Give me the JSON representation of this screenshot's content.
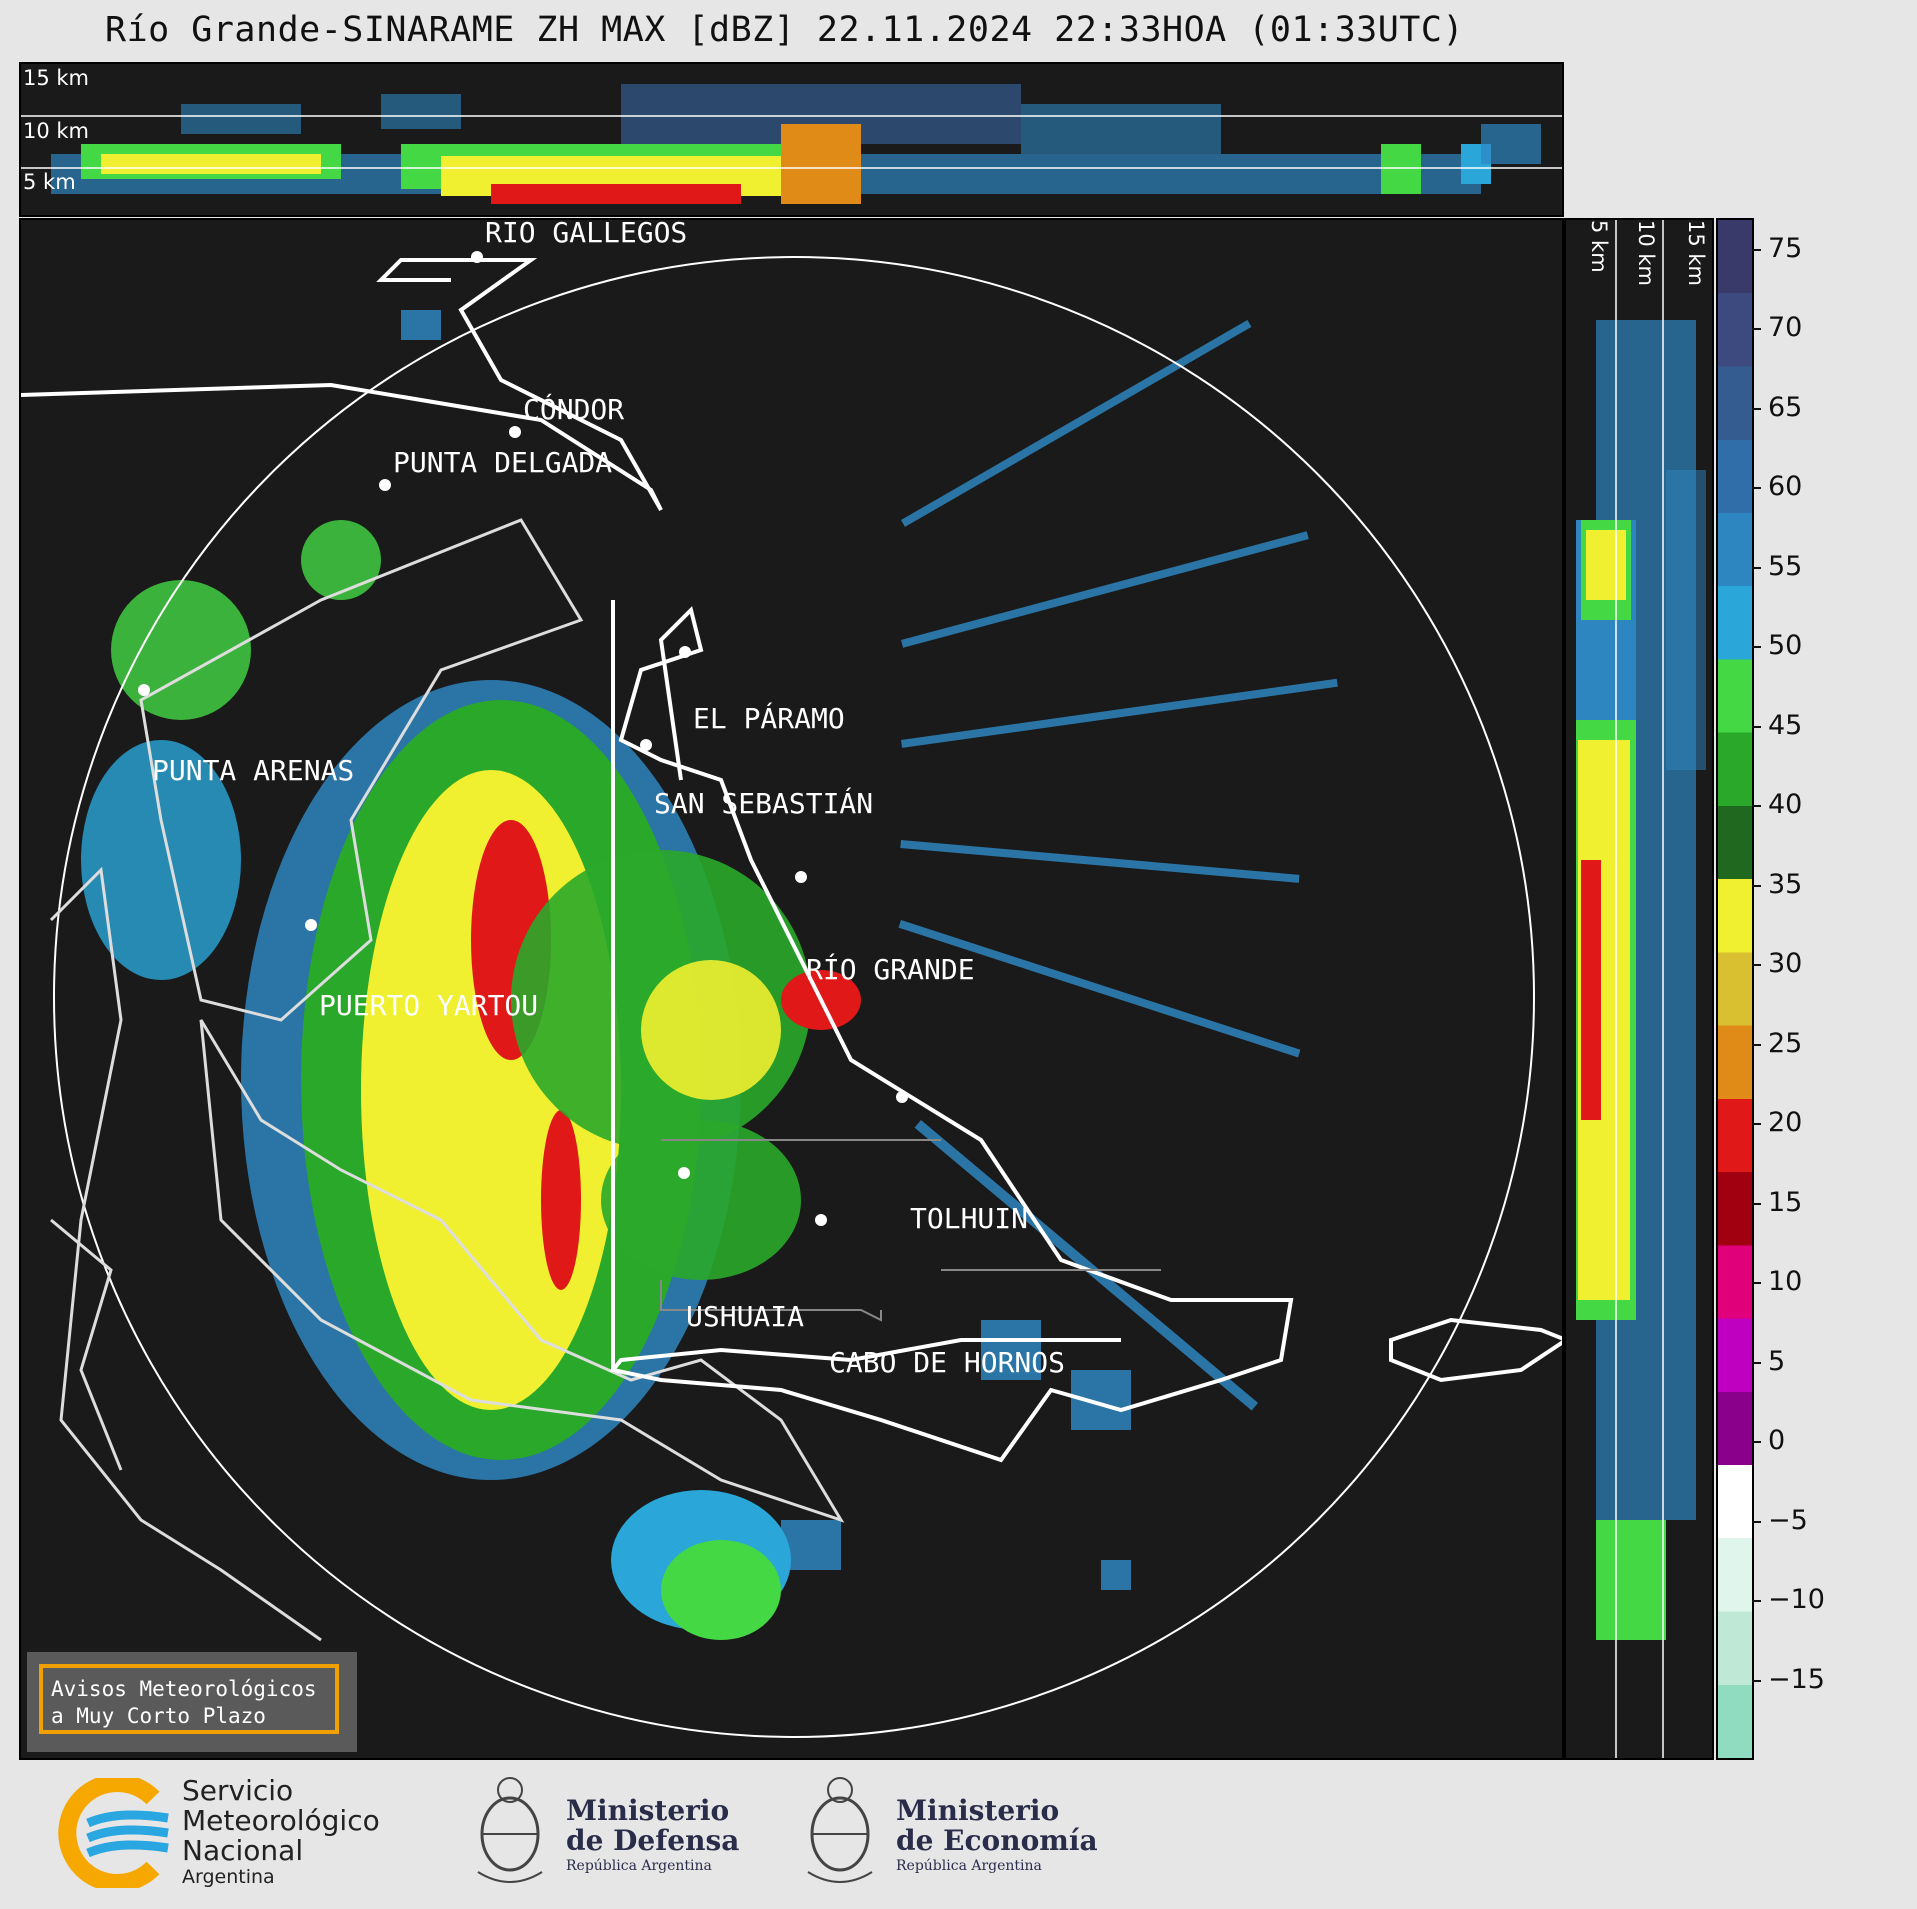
{
  "title": "Río Grande-SINARAME ZH MAX [dBZ] 22.11.2024 22:33HOA (01:33UTC)",
  "top_panel": {
    "heights": [
      "15 km",
      "10 km",
      "5 km"
    ]
  },
  "side_panel": {
    "heights": [
      "5 km",
      "10 km",
      "15 km"
    ]
  },
  "locations": [
    {
      "name": "RÍO GALLEGOS"
    },
    {
      "name": "CÓNDOR"
    },
    {
      "name": "PUNTA DELGADA"
    },
    {
      "name": "EL PÁRAMO"
    },
    {
      "name": "PUNTA ARENAS"
    },
    {
      "name": "SAN SEBASTIÁN"
    },
    {
      "name": "RÍO GRANDE"
    },
    {
      "name": "PUERTO YARTOU"
    },
    {
      "name": "TOLHUIN"
    },
    {
      "name": "USHUAIA"
    },
    {
      "name": "CABO DE HORNOS"
    }
  ],
  "colorbar": {
    "unit": "dBZ",
    "ticks": [
      75,
      70,
      65,
      60,
      55,
      50,
      45,
      40,
      35,
      30,
      25,
      20,
      15,
      10,
      5,
      0,
      -5,
      -10,
      -15
    ],
    "tick_labels": [
      "75",
      "70",
      "65",
      "60",
      "55",
      "50",
      "45",
      "40",
      "35",
      "30",
      "25",
      "20",
      "15",
      "10",
      "5",
      "0",
      "−5",
      "−10",
      "−15"
    ],
    "range": [
      -20,
      77
    ],
    "colors": [
      "#3a3a6a",
      "#3c4a80",
      "#355c90",
      "#2f6ea8",
      "#2e86c0",
      "#2aa6d8",
      "#44d844",
      "#2aa82a",
      "#206820",
      "#f0f030",
      "#d8c030",
      "#e08a18",
      "#e01818",
      "#a00010",
      "#e0007a",
      "#c000c0",
      "#8a008a",
      "#ffffff",
      "#e0f5ec",
      "#bfe8d6",
      "#90dcc0"
    ]
  },
  "notice": {
    "line1": "Avisos Meteorológicos",
    "line2": "a Muy Corto Plazo"
  },
  "logos": {
    "smn": {
      "line1": "Servicio",
      "line2": "Meteorológico",
      "line3": "Nacional",
      "line4": "Argentina"
    },
    "defensa": {
      "line1": "Ministerio",
      "line2": "de Defensa",
      "line3": "República Argentina"
    },
    "economia": {
      "line1": "Ministerio",
      "line2": "de Economía",
      "line3": "República Argentina"
    }
  }
}
